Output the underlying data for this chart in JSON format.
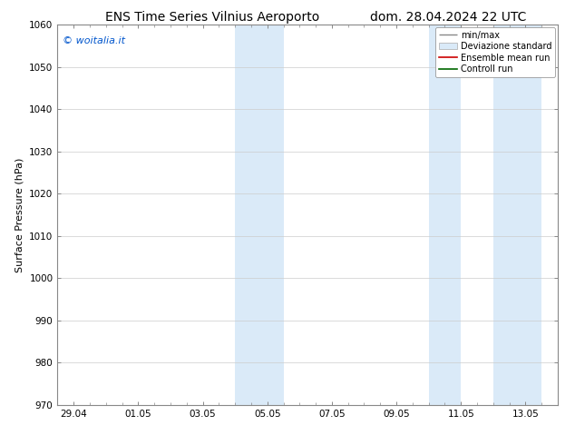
{
  "title_left": "ENS Time Series Vilnius Aeroporto",
  "title_right": "dom. 28.04.2024 22 UTC",
  "ylabel": "Surface Pressure (hPa)",
  "ylim": [
    970,
    1060
  ],
  "yticks": [
    970,
    980,
    990,
    1000,
    1010,
    1020,
    1030,
    1040,
    1050,
    1060
  ],
  "xtick_labels": [
    "29.04",
    "01.05",
    "03.05",
    "05.05",
    "07.05",
    "09.05",
    "11.05",
    "13.05"
  ],
  "xtick_days_from_start": [
    0,
    2,
    4,
    6,
    8,
    10,
    12,
    14
  ],
  "watermark": "© woitalia.it",
  "watermark_color": "#0055cc",
  "bg_color": "#ffffff",
  "plot_bg_color": "#ffffff",
  "shaded_bands": [
    {
      "x_start": 5.0,
      "x_end": 6.5
    },
    {
      "x_start": 11.0,
      "x_end": 12.0
    },
    {
      "x_start": 13.0,
      "x_end": 14.5
    }
  ],
  "shade_color": "#daeaf8",
  "title_fontsize": 10,
  "tick_fontsize": 7.5,
  "ylabel_fontsize": 8,
  "legend_fontsize": 7,
  "grid_color": "#cccccc",
  "spine_color": "#888888",
  "xlim": [
    -0.5,
    15.0
  ]
}
